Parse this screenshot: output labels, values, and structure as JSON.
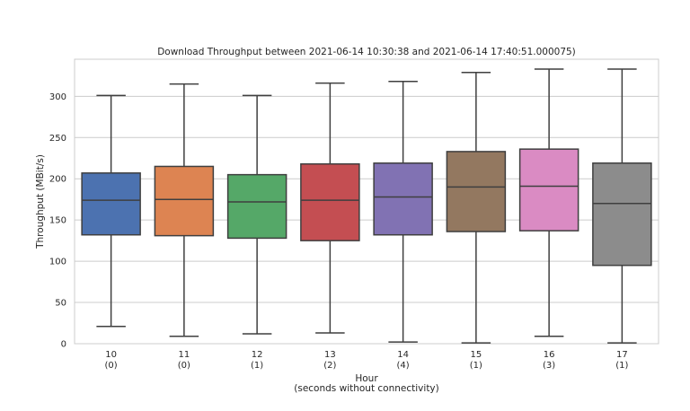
{
  "chart_data": {
    "type": "box",
    "title": "Download Throughput between 2021-06-14 10:30:38 and 2021-06-14 17:40:51.000075)",
    "xlabel": "Hour",
    "xlabel_sub": "(seconds without connectivity)",
    "ylabel": "Throughput (MBit/s)",
    "ylim": [
      0,
      345
    ],
    "yticks": [
      0,
      50,
      100,
      150,
      200,
      250,
      300
    ],
    "grid": true,
    "categories": [
      {
        "label": "10",
        "sub": "(0)",
        "min": 21,
        "q1": 132,
        "median": 174,
        "q3": 207,
        "max": 301,
        "color": "#4c72b0"
      },
      {
        "label": "11",
        "sub": "(0)",
        "min": 9,
        "q1": 131,
        "median": 175,
        "q3": 215,
        "max": 315,
        "color": "#dd8452"
      },
      {
        "label": "12",
        "sub": "(1)",
        "min": 12,
        "q1": 128,
        "median": 172,
        "q3": 205,
        "max": 301,
        "color": "#55a868"
      },
      {
        "label": "13",
        "sub": "(2)",
        "min": 13,
        "q1": 125,
        "median": 174,
        "q3": 218,
        "max": 316,
        "color": "#c44e52"
      },
      {
        "label": "14",
        "sub": "(4)",
        "min": 2,
        "q1": 132,
        "median": 178,
        "q3": 219,
        "max": 318,
        "color": "#8172b3"
      },
      {
        "label": "15",
        "sub": "(1)",
        "min": 1,
        "q1": 136,
        "median": 190,
        "q3": 233,
        "max": 329,
        "color": "#937860"
      },
      {
        "label": "16",
        "sub": "(3)",
        "min": 9,
        "q1": 137,
        "median": 191,
        "q3": 236,
        "max": 333,
        "color": "#da8bc3"
      },
      {
        "label": "17",
        "sub": "(1)",
        "min": 1,
        "q1": 95,
        "median": 170,
        "q3": 219,
        "max": 333,
        "color": "#8c8c8c"
      }
    ]
  }
}
